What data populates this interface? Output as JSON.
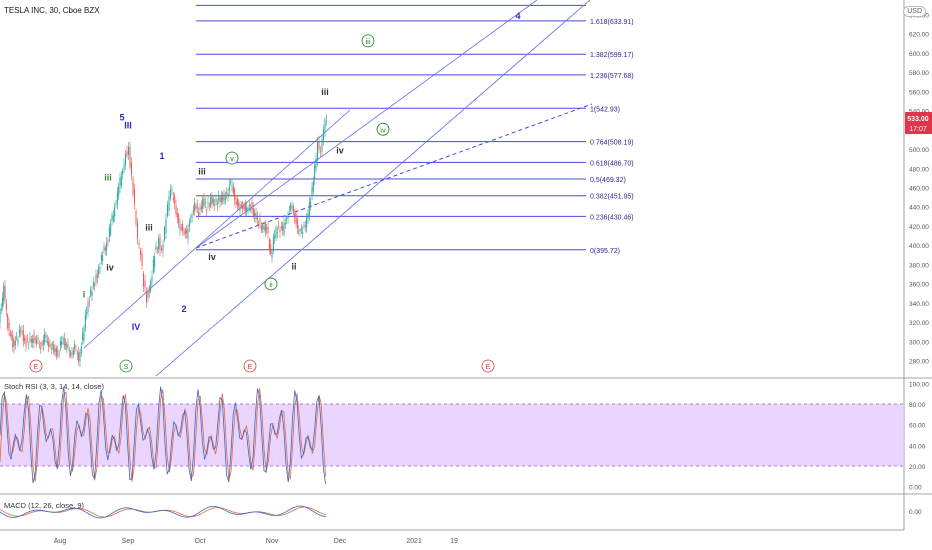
{
  "header": {
    "symbol": "TESLA INC, 30, Cboe BZX"
  },
  "currency_badge": "USD",
  "price_tag": {
    "price": "533.00",
    "countdown": "17:07"
  },
  "x_axis": {
    "labels": [
      "Aug",
      "Sep",
      "Oct",
      "Nov",
      "Dec",
      "2021",
      "19"
    ]
  },
  "chart_data": [
    {
      "type": "line",
      "panel": "price",
      "y_range": [
        260,
        650
      ],
      "y_ticks": [
        "280.00",
        "300.00",
        "320.00",
        "340.00",
        "360.00",
        "380.00",
        "400.00",
        "420.00",
        "440.00",
        "460.00",
        "480.00",
        "500.00",
        "520.00",
        "540.00",
        "560.00",
        "580.00",
        "600.00",
        "620.00",
        "640.00"
      ],
      "price_path": [
        [
          0,
          320
        ],
        [
          5,
          355
        ],
        [
          9,
          318
        ],
        [
          14,
          298
        ],
        [
          18,
          302
        ],
        [
          22,
          312
        ],
        [
          26,
          300
        ],
        [
          30,
          298
        ],
        [
          34,
          304
        ],
        [
          38,
          300
        ],
        [
          42,
          296
        ],
        [
          46,
          305
        ],
        [
          50,
          298
        ],
        [
          55,
          292
        ],
        [
          59,
          287
        ],
        [
          63,
          302
        ],
        [
          68,
          295
        ],
        [
          72,
          288
        ],
        [
          76,
          294
        ],
        [
          80,
          283
        ],
        [
          84,
          305
        ],
        [
          88,
          335
        ],
        [
          92,
          350
        ],
        [
          96,
          362
        ],
        [
          100,
          375
        ],
        [
          104,
          392
        ],
        [
          108,
          402
        ],
        [
          112,
          422
        ],
        [
          116,
          440
        ],
        [
          120,
          460
        ],
        [
          124,
          480
        ],
        [
          127,
          495
        ],
        [
          130,
          500
        ],
        [
          133,
          470
        ],
        [
          136,
          440
        ],
        [
          139,
          405
        ],
        [
          142,
          390
        ],
        [
          145,
          360
        ],
        [
          148,
          345
        ],
        [
          152,
          360
        ],
        [
          156,
          392
        ],
        [
          160,
          405
        ],
        [
          163,
          392
        ],
        [
          166,
          415
        ],
        [
          169,
          440
        ],
        [
          172,
          458
        ],
        [
          176,
          445
        ],
        [
          180,
          420
        ],
        [
          184,
          418
        ],
        [
          188,
          410
        ],
        [
          192,
          430
        ],
        [
          196,
          440
        ],
        [
          200,
          435
        ],
        [
          204,
          445
        ],
        [
          208,
          440
        ],
        [
          212,
          448
        ],
        [
          216,
          444
        ],
        [
          220,
          450
        ],
        [
          224,
          448
        ],
        [
          228,
          455
        ],
        [
          232,
          465
        ],
        [
          236,
          450
        ],
        [
          240,
          438
        ],
        [
          244,
          442
        ],
        [
          248,
          436
        ],
        [
          252,
          442
        ],
        [
          256,
          430
        ],
        [
          260,
          425
        ],
        [
          264,
          418
        ],
        [
          268,
          420
        ],
        [
          272,
          390
        ],
        [
          276,
          412
        ],
        [
          280,
          420
        ],
        [
          284,
          415
        ],
        [
          288,
          430
        ],
        [
          292,
          440
        ],
        [
          296,
          432
        ],
        [
          300,
          412
        ],
        [
          304,
          418
        ],
        [
          308,
          425
        ],
        [
          312,
          450
        ],
        [
          316,
          480
        ],
        [
          319,
          505
        ],
        [
          322,
          495
        ],
        [
          325,
          520
        ],
        [
          328,
          533
        ]
      ],
      "fib_levels": [
        {
          "ratio": "0",
          "price": 395.72,
          "label": "0(395.72)"
        },
        {
          "ratio": "0.236",
          "price": 430.46,
          "label": "0.236(430.46)"
        },
        {
          "ratio": "0.382",
          "price": 451.95,
          "label": "0.382(451.95)"
        },
        {
          "ratio": "0.5",
          "price": 469.32,
          "label": "0.5(469.32)"
        },
        {
          "ratio": "0.618",
          "price": 486.7,
          "label": "0.618(486.70)"
        },
        {
          "ratio": "0.764",
          "price": 508.19,
          "label": "0.764(508.19)"
        },
        {
          "ratio": "1",
          "price": 542.93,
          "label": "1(542.93)"
        },
        {
          "ratio": "1.236",
          "price": 577.68,
          "label": "1.236(577.68)"
        },
        {
          "ratio": "1.382",
          "price": 599.17,
          "label": "1.382(599.17)"
        },
        {
          "ratio": "1.618",
          "price": 633.91,
          "label": "1.618(633.91)"
        },
        {
          "ratio": "",
          "price": 650,
          "label": ""
        }
      ],
      "wave_labels": [
        {
          "text": "5",
          "x": 122,
          "y": 530,
          "color": "#2a2ad0"
        },
        {
          "text": "III",
          "x": 128,
          "y": 522,
          "color": "#2a2ad0"
        },
        {
          "text": "iii",
          "x": 108,
          "y": 468,
          "color": "#2e8b2e"
        },
        {
          "text": "i",
          "x": 84,
          "y": 346,
          "color": "#2e8b2e"
        },
        {
          "text": "iv",
          "x": 110,
          "y": 374,
          "color": "#333333"
        },
        {
          "text": "iii",
          "x": 149,
          "y": 416,
          "color": "#333333"
        },
        {
          "text": "IV",
          "x": 136,
          "y": 312,
          "color": "#2a2ad0"
        },
        {
          "text": "1",
          "x": 162,
          "y": 490,
          "color": "#2a2ad0"
        },
        {
          "text": "2",
          "x": 184,
          "y": 331,
          "color": "#2a2ad0"
        },
        {
          "text": "iii",
          "x": 202,
          "y": 474,
          "color": "#333333"
        },
        {
          "text": "iv",
          "x": 212,
          "y": 385,
          "color": "#333333"
        },
        {
          "text": "ii",
          "x": 294,
          "y": 375,
          "color": "#333333"
        },
        {
          "text": "iv",
          "x": 340,
          "y": 496,
          "color": "#333333"
        },
        {
          "text": "iii",
          "x": 325,
          "y": 557,
          "color": "#333333"
        },
        {
          "text": "4",
          "x": 518,
          "y": 636,
          "color": "#2a2ad0"
        }
      ],
      "circled_labels": [
        {
          "text": "iii",
          "x": 368,
          "y": 610,
          "color": "#2e8b2e"
        },
        {
          "text": "iv",
          "x": 383,
          "y": 518,
          "color": "#2e8b2e"
        },
        {
          "text": "v",
          "x": 232,
          "y": 488,
          "color": "#2e8b2e"
        },
        {
          "text": "ii",
          "x": 271,
          "y": 357,
          "color": "#2e8b2e"
        }
      ],
      "event_markers": [
        {
          "text": "E",
          "x": 36,
          "color": "#d04040"
        },
        {
          "text": "S",
          "x": 126,
          "color": "#2e8b2e"
        },
        {
          "text": "E",
          "x": 250,
          "color": "#d04040"
        },
        {
          "text": "E",
          "x": 488,
          "color": "#d04040"
        }
      ]
    },
    {
      "type": "line",
      "panel": "stoch_rsi",
      "title": "Stoch RSI (3, 3, 14, 14, close)",
      "y_range": [
        -5,
        105
      ],
      "y_ticks": [
        "0.00",
        "20.00",
        "40.00",
        "60.00",
        "80.00",
        "100.00"
      ],
      "band": [
        20,
        80
      ]
    },
    {
      "type": "line",
      "panel": "macd",
      "title": "MACD (12, 26, close, 9)",
      "y_ticks": [
        "0.00"
      ]
    }
  ],
  "colors": {
    "fib": "#4a4ae0",
    "channel": "#6a6af0",
    "k_line": "#3a66c4",
    "d_line": "#e06b3a",
    "band_fill": "#e3c7ff",
    "price_tag": "#e0354a",
    "up": "#26a69a",
    "down": "#ef5350"
  }
}
